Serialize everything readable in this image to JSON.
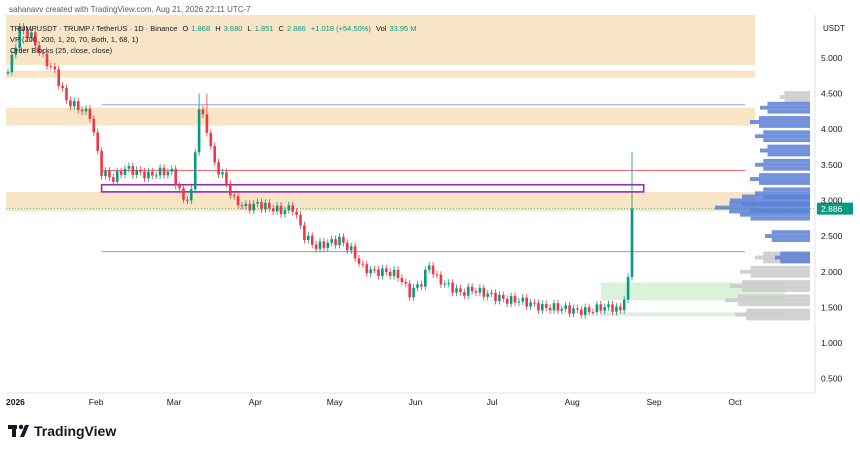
{
  "header": {
    "credit": "sahanavv created with TradingView.com, Aug 21, 2026 22:11 UTC-7"
  },
  "legend": {
    "symbol": "TRUMPUSDT · TRUMP / TetherUS · 1D · Binance",
    "open_label": "O",
    "open": "1.868",
    "high_label": "H",
    "high": "3.680",
    "low_label": "L",
    "low": "1.851",
    "close_label": "C",
    "close": "2.886",
    "change": "+1.018 (+54.50%)",
    "vol_label": "Vol",
    "vol": "33.95 M",
    "vp": "VP (200, 200, 1, 20, 70, Both, 1, 68, 1)",
    "ob": "Order Blocks (25, close, close)"
  },
  "currency": "USDT",
  "footer": {
    "brand": "TradingView"
  },
  "colors": {
    "up": "#089981",
    "down": "#f23645",
    "zone": "#f6e2c0",
    "vp_blue": "#5b7fd6",
    "vp_gray": "#c9c9c9",
    "green_zone": "#d9f2d9",
    "purple": "#9c27b0"
  },
  "chart_data": {
    "type": "candlestick",
    "price_axis": {
      "min": 0.3,
      "max": 5.6,
      "ticks": [
        "0.500",
        "1.000",
        "1.500",
        "2.000",
        "2.500",
        "3.000",
        "3.500",
        "4.000",
        "4.500",
        "5.000"
      ]
    },
    "current_price": "2.886",
    "time_axis": {
      "labels": [
        "2026",
        "Feb",
        "Mar",
        "Apr",
        "May",
        "Jun",
        "Jul",
        "Aug",
        "Sep",
        "Oct"
      ]
    },
    "path": [
      [
        0,
        4.8
      ],
      [
        3,
        5.4
      ],
      [
        6,
        5.3
      ],
      [
        9,
        5.0
      ],
      [
        12,
        4.8
      ],
      [
        15,
        4.4
      ],
      [
        18,
        4.3
      ],
      [
        21,
        4.2
      ],
      [
        24,
        3.4
      ],
      [
        27,
        3.3
      ],
      [
        30,
        3.45
      ],
      [
        33,
        3.4
      ],
      [
        36,
        3.35
      ],
      [
        39,
        3.4
      ],
      [
        42,
        3.4
      ],
      [
        45,
        3.0
      ],
      [
        47,
        3.1
      ],
      [
        49,
        4.3
      ],
      [
        51,
        4.0
      ],
      [
        53,
        3.5
      ],
      [
        55,
        3.35
      ],
      [
        58,
        3.0
      ],
      [
        61,
        2.9
      ],
      [
        64,
        2.95
      ],
      [
        67,
        2.9
      ],
      [
        70,
        2.85
      ],
      [
        73,
        2.9
      ],
      [
        76,
        2.5
      ],
      [
        79,
        2.35
      ],
      [
        82,
        2.4
      ],
      [
        85,
        2.45
      ],
      [
        88,
        2.3
      ],
      [
        91,
        2.05
      ],
      [
        94,
        2.0
      ],
      [
        97,
        2.0
      ],
      [
        100,
        1.95
      ],
      [
        103,
        1.7
      ],
      [
        106,
        1.85
      ],
      [
        108,
        2.1
      ],
      [
        110,
        1.9
      ],
      [
        113,
        1.8
      ],
      [
        116,
        1.7
      ],
      [
        119,
        1.75
      ],
      [
        122,
        1.7
      ],
      [
        125,
        1.65
      ],
      [
        128,
        1.6
      ],
      [
        131,
        1.6
      ],
      [
        134,
        1.55
      ],
      [
        137,
        1.5
      ],
      [
        140,
        1.5
      ],
      [
        143,
        1.48
      ],
      [
        146,
        1.45
      ],
      [
        149,
        1.45
      ],
      [
        152,
        1.5
      ],
      [
        155,
        1.5
      ],
      [
        157,
        1.45
      ],
      [
        159,
        1.87
      ],
      [
        160,
        2.886
      ]
    ],
    "spikes": [
      [
        49,
        4.5
      ],
      [
        51,
        4.5
      ],
      [
        160,
        3.68
      ]
    ],
    "zones": [
      {
        "from": 4.9,
        "to": 5.6
      },
      {
        "from": 4.72,
        "to": 4.82
      },
      {
        "from": 4.05,
        "to": 4.3
      },
      {
        "from": 2.85,
        "to": 3.12
      }
    ],
    "lines": [
      {
        "price": 4.34,
        "color": "#5b7fd6"
      },
      {
        "price": 3.42,
        "color": "#f23645"
      },
      {
        "price": 2.28,
        "color": "#5b7fd6"
      }
    ],
    "purple_box": {
      "from": 3.12,
      "to": 3.22
    },
    "green_zones": [
      {
        "from": 1.6,
        "to": 1.85
      },
      {
        "from": 1.38,
        "to": 1.43
      }
    ],
    "volume_profile": {
      "blue": [
        [
          2.2,
          35
        ],
        [
          2.5,
          45
        ],
        [
          2.8,
          70
        ],
        [
          2.9,
          95
        ],
        [
          3.0,
          80
        ],
        [
          3.1,
          55
        ],
        [
          3.3,
          60
        ],
        [
          3.5,
          55
        ],
        [
          3.7,
          50
        ],
        [
          3.9,
          55
        ],
        [
          4.1,
          60
        ],
        [
          4.3,
          50
        ]
      ],
      "gray": [
        [
          1.4,
          75
        ],
        [
          1.6,
          85
        ],
        [
          1.8,
          80
        ],
        [
          2.0,
          70
        ],
        [
          2.2,
          55
        ],
        [
          4.45,
          30
        ]
      ]
    }
  }
}
